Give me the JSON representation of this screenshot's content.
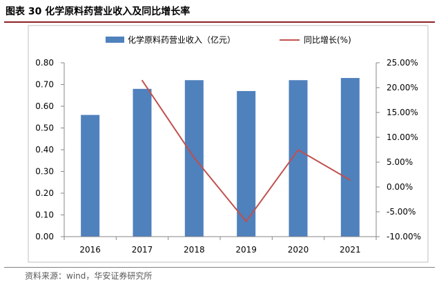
{
  "header": {
    "title": "图表 30 化学原料药营业收入及同比增长率"
  },
  "source": "资料来源：wind，华安证券研究所",
  "chart_data": {
    "type": "bar",
    "title": "",
    "xlabel": "",
    "categories": [
      "2016",
      "2017",
      "2018",
      "2019",
      "2020",
      "2021"
    ],
    "series": [
      {
        "name": "化学原料药营业收入（亿元）",
        "type": "bar",
        "axis": "left",
        "color": "#4f81bd",
        "values": [
          0.56,
          0.68,
          0.72,
          0.67,
          0.72,
          0.73
        ]
      },
      {
        "name": "同比增长(%)",
        "type": "line",
        "axis": "right",
        "color": "#c0504d",
        "values": [
          null,
          21.43,
          5.88,
          -6.94,
          7.46,
          1.39
        ]
      }
    ],
    "y_left": {
      "range": [
        0,
        0.8
      ],
      "ticks": [
        0,
        0.1,
        0.2,
        0.3,
        0.4,
        0.5,
        0.6,
        0.7,
        0.8
      ],
      "tick_labels": [
        "0.00",
        "0.10",
        "0.20",
        "0.30",
        "0.40",
        "0.50",
        "0.60",
        "0.70",
        "0.80"
      ]
    },
    "y_right": {
      "range": [
        -10,
        25
      ],
      "ticks": [
        -10,
        -5,
        0,
        5,
        10,
        15,
        20,
        25
      ],
      "tick_labels": [
        "-10.00%",
        "-5.00%",
        "0.00%",
        "5.00%",
        "10.00%",
        "15.00%",
        "20.00%",
        "25.00%"
      ]
    },
    "grid": false,
    "legend_position": "top"
  }
}
